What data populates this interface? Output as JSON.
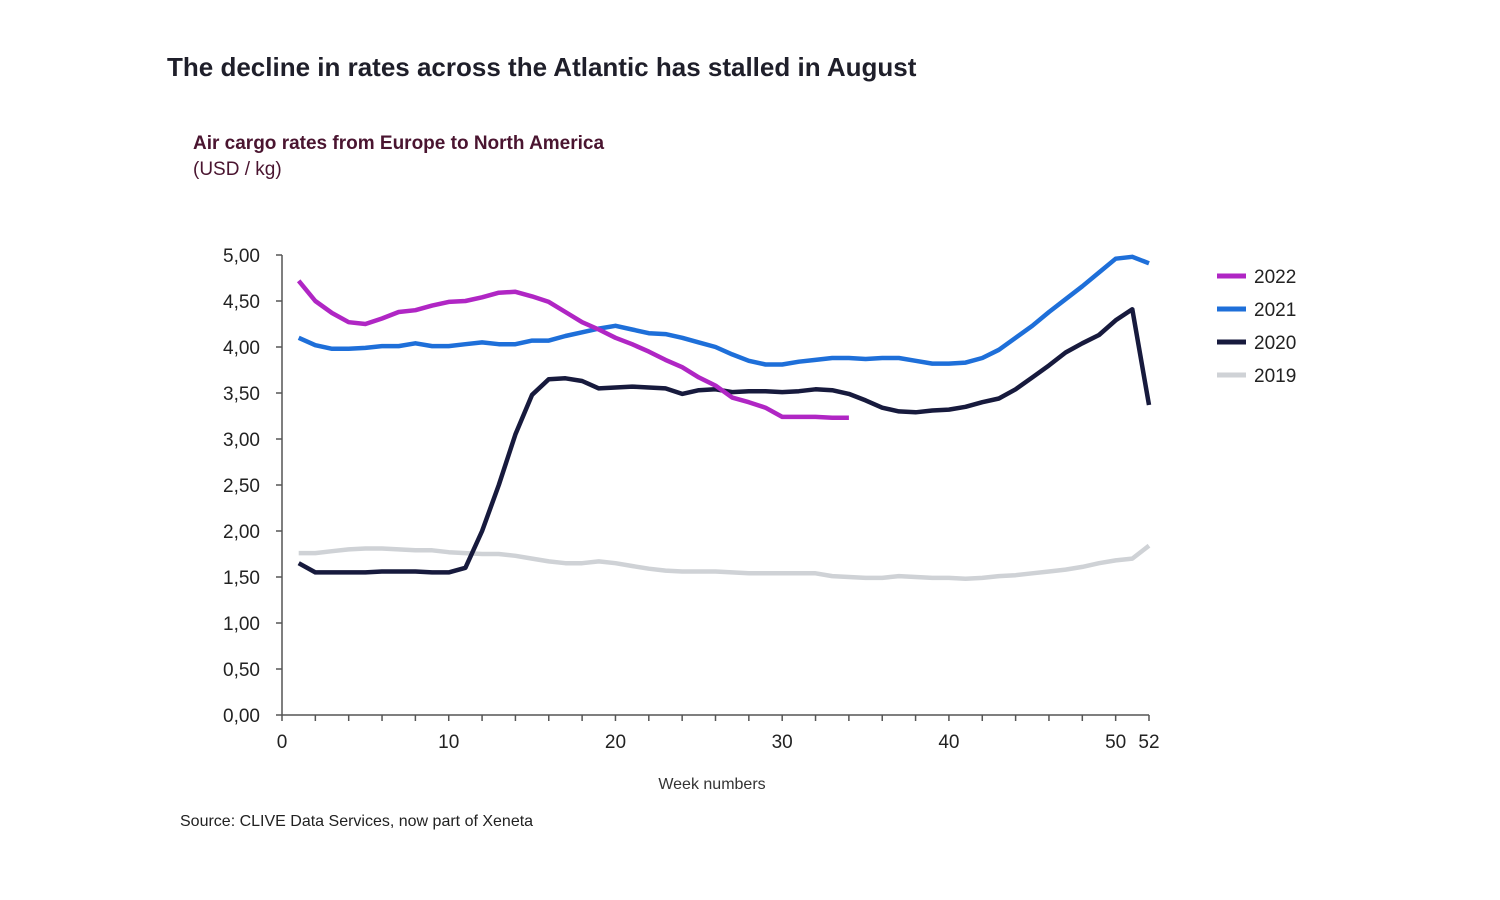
{
  "headline": "The decline in rates across the Atlantic has stalled in August",
  "source": "Source: CLIVE Data Services, now part of Xeneta",
  "chart_data": {
    "type": "line",
    "title": "Air cargo rates from Europe to North America",
    "subtitle": "(USD / kg)",
    "xlabel": "Week numbers",
    "ylabel": "",
    "xlim": [
      0,
      52
    ],
    "ylim": [
      0,
      5
    ],
    "xticks": [
      0,
      10,
      20,
      30,
      40,
      50,
      52
    ],
    "yticks": [
      "0,00",
      "0,50",
      "1,00",
      "1,50",
      "2,00",
      "2,50",
      "3,00",
      "3,50",
      "4,00",
      "4,50",
      "5,00"
    ],
    "ytick_values": [
      0,
      0.5,
      1,
      1.5,
      2,
      2.5,
      3,
      3.5,
      4,
      4.5,
      5
    ],
    "grid": false,
    "legend_position": "right",
    "series": [
      {
        "name": "2022",
        "color": "#b026c4",
        "x": [
          1,
          2,
          3,
          4,
          5,
          6,
          7,
          8,
          9,
          10,
          11,
          12,
          13,
          14,
          15,
          16,
          17,
          18,
          19,
          20,
          21,
          22,
          23,
          24,
          25,
          26,
          27,
          28,
          29,
          30,
          31,
          32,
          33,
          34
        ],
        "y": [
          4.72,
          4.5,
          4.37,
          4.27,
          4.25,
          4.31,
          4.38,
          4.4,
          4.45,
          4.49,
          4.5,
          4.54,
          4.59,
          4.6,
          4.55,
          4.49,
          4.38,
          4.27,
          4.19,
          4.1,
          4.03,
          3.95,
          3.86,
          3.78,
          3.67,
          3.58,
          3.45,
          3.4,
          3.34,
          3.24,
          3.24,
          3.24,
          3.23,
          3.23
        ]
      },
      {
        "name": "2021",
        "color": "#1e6fd9",
        "x": [
          1,
          2,
          3,
          4,
          5,
          6,
          7,
          8,
          9,
          10,
          11,
          12,
          13,
          14,
          15,
          16,
          17,
          18,
          19,
          20,
          21,
          22,
          23,
          24,
          25,
          26,
          27,
          28,
          29,
          30,
          31,
          32,
          33,
          34,
          35,
          36,
          37,
          38,
          39,
          40,
          41,
          42,
          43,
          44,
          45,
          46,
          47,
          48,
          49,
          50,
          51,
          52
        ],
        "y": [
          4.1,
          4.02,
          3.98,
          3.98,
          3.99,
          4.01,
          4.01,
          4.04,
          4.01,
          4.01,
          4.03,
          4.05,
          4.03,
          4.03,
          4.07,
          4.07,
          4.12,
          4.16,
          4.2,
          4.23,
          4.19,
          4.15,
          4.14,
          4.1,
          4.05,
          4.0,
          3.92,
          3.85,
          3.81,
          3.81,
          3.84,
          3.86,
          3.88,
          3.88,
          3.87,
          3.88,
          3.88,
          3.85,
          3.82,
          3.82,
          3.83,
          3.88,
          3.97,
          4.1,
          4.23,
          4.38,
          4.52,
          4.66,
          4.81,
          4.96,
          4.98,
          4.91
        ]
      },
      {
        "name": "2020",
        "color": "#171a3d",
        "x": [
          1,
          2,
          3,
          4,
          5,
          6,
          7,
          8,
          9,
          10,
          11,
          12,
          13,
          14,
          15,
          16,
          17,
          18,
          19,
          20,
          21,
          22,
          23,
          24,
          25,
          26,
          27,
          28,
          29,
          30,
          31,
          32,
          33,
          34,
          35,
          36,
          37,
          38,
          39,
          40,
          41,
          42,
          43,
          44,
          45,
          46,
          47,
          48,
          49,
          50,
          51,
          52
        ],
        "y": [
          1.65,
          1.55,
          1.55,
          1.55,
          1.55,
          1.56,
          1.56,
          1.56,
          1.55,
          1.55,
          1.6,
          2.0,
          2.5,
          3.05,
          3.48,
          3.65,
          3.66,
          3.63,
          3.55,
          3.56,
          3.57,
          3.56,
          3.55,
          3.49,
          3.53,
          3.54,
          3.51,
          3.52,
          3.52,
          3.51,
          3.52,
          3.54,
          3.53,
          3.49,
          3.42,
          3.34,
          3.3,
          3.29,
          3.31,
          3.32,
          3.35,
          3.4,
          3.44,
          3.54,
          3.67,
          3.8,
          3.94,
          4.04,
          4.13,
          4.29,
          4.41,
          3.37
        ]
      },
      {
        "name": "2019",
        "color": "#cfd2d6",
        "x": [
          1,
          2,
          3,
          4,
          5,
          6,
          7,
          8,
          9,
          10,
          11,
          12,
          13,
          14,
          15,
          16,
          17,
          18,
          19,
          20,
          21,
          22,
          23,
          24,
          25,
          26,
          27,
          28,
          29,
          30,
          31,
          32,
          33,
          34,
          35,
          36,
          37,
          38,
          39,
          40,
          41,
          42,
          43,
          44,
          45,
          46,
          47,
          48,
          49,
          50,
          51,
          52
        ],
        "y": [
          1.76,
          1.76,
          1.78,
          1.8,
          1.81,
          1.81,
          1.8,
          1.79,
          1.79,
          1.77,
          1.76,
          1.75,
          1.75,
          1.73,
          1.7,
          1.67,
          1.65,
          1.65,
          1.67,
          1.65,
          1.62,
          1.59,
          1.57,
          1.56,
          1.56,
          1.56,
          1.55,
          1.54,
          1.54,
          1.54,
          1.54,
          1.54,
          1.51,
          1.5,
          1.49,
          1.49,
          1.51,
          1.5,
          1.49,
          1.49,
          1.48,
          1.49,
          1.51,
          1.52,
          1.54,
          1.56,
          1.58,
          1.61,
          1.65,
          1.68,
          1.7,
          1.84
        ]
      }
    ]
  }
}
